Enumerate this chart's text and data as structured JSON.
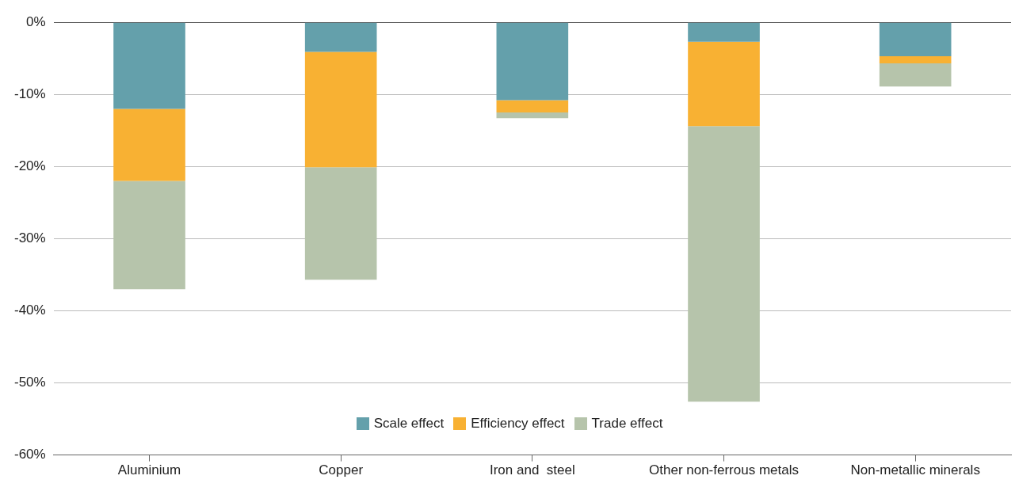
{
  "chart_data": {
    "type": "bar",
    "stacked": true,
    "categories": [
      "Aluminium",
      "Copper",
      "Iron and  steel",
      "Other non-ferrous metals",
      "Non-metallic minerals"
    ],
    "series": [
      {
        "name": "Scale effect",
        "color": "#64a0ab",
        "values": [
          -12,
          -4.1,
          -10.8,
          -2.7,
          -4.7
        ]
      },
      {
        "name": "Efficiency effect",
        "color": "#f8b133",
        "values": [
          -10,
          -16,
          -1.7,
          -11.7,
          -1
        ]
      },
      {
        "name": "Trade effect",
        "color": "#b6c4ab",
        "values": [
          -15,
          -15.6,
          -0.8,
          -38.2,
          -3.2
        ]
      }
    ],
    "ylim": [
      -60,
      0
    ],
    "yticks": [
      {
        "value": 0,
        "label": "0%"
      },
      {
        "value": -10,
        "label": "-10%"
      },
      {
        "value": -20,
        "label": "-20%"
      },
      {
        "value": -30,
        "label": "-30%"
      },
      {
        "value": -40,
        "label": "-40%"
      },
      {
        "value": -50,
        "label": "-50%"
      },
      {
        "value": -60,
        "label": "-60%"
      }
    ],
    "grid": "y",
    "legend": "bottom"
  }
}
